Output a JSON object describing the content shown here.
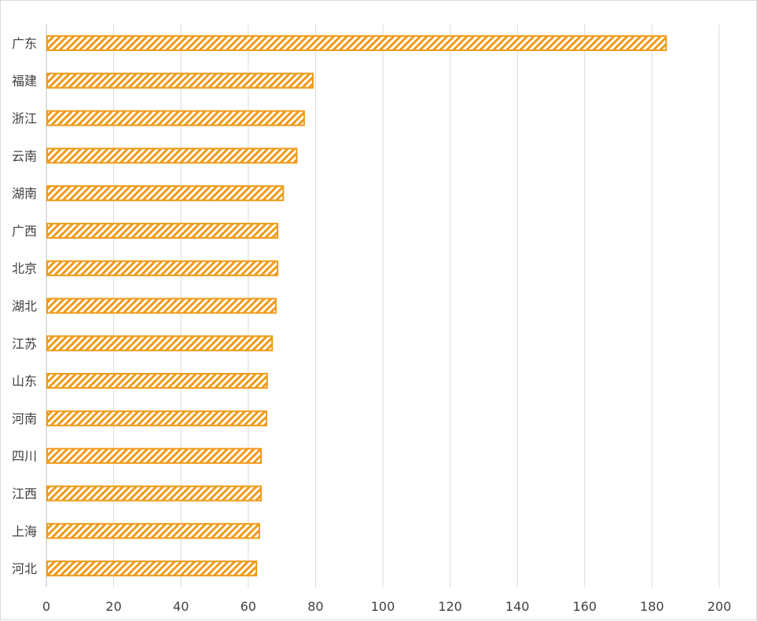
{
  "chart_data": {
    "type": "bar",
    "orientation": "horizontal",
    "categories": [
      "广东",
      "福建",
      "浙江",
      "云南",
      "湖南",
      "广西",
      "北京",
      "湖北",
      "江苏",
      "山东",
      "河南",
      "四川",
      "江西",
      "上海",
      "河北"
    ],
    "series": [
      {
        "values": [
          184.2,
          79.2,
          76.6,
          74.4,
          70.4,
          68.7,
          68.7,
          68.2,
          67.1,
          65.6,
          65.4,
          63.8,
          63.8,
          63.3,
          62.4
        ]
      }
    ],
    "xlim": [
      0,
      200
    ],
    "xticks": [
      "0",
      "20",
      "40",
      "60",
      "80",
      "100",
      "120",
      "140",
      "160",
      "180",
      "200"
    ],
    "grid": "vertical",
    "legend": "none",
    "colors": {
      "bar_stroke": "#F09A17",
      "bar_hatch": "#F09A17",
      "bar_background": "#ffffff",
      "gridline": "#d9d9d9",
      "axis": "#bfbfbf",
      "text": "#404040"
    }
  }
}
